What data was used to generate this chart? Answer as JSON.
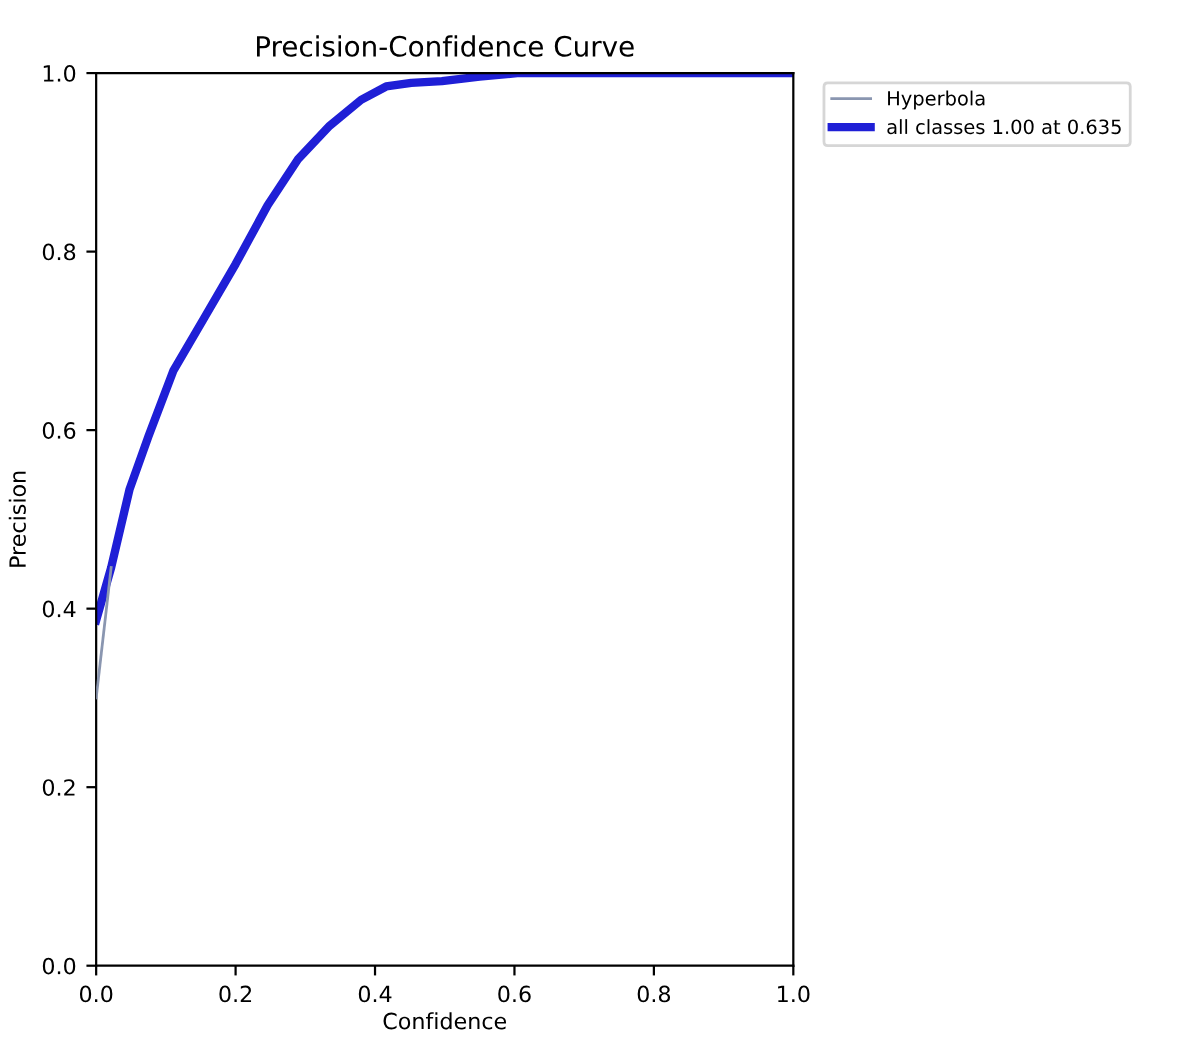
{
  "chart_data": {
    "type": "line",
    "title": "Precision-Confidence Curve",
    "xlabel": "Confidence",
    "ylabel": "Precision",
    "series": [
      {
        "name": "Hyperbola",
        "color": "#8a96b0",
        "x": [
          0,
          0.0215
        ],
        "values": [
          0.3,
          0.446
        ]
      },
      {
        "name": "all classes 1.00 at 0.635",
        "color": "#1f1fd6",
        "x": [
          0,
          0.0215,
          0.048,
          0.075,
          0.111,
          0.156,
          0.2,
          0.246,
          0.29,
          0.335,
          0.38,
          0.416,
          0.452,
          0.496,
          0.55,
          0.604,
          1.0
        ],
        "values": [
          0.387,
          0.446,
          0.534,
          0.593,
          0.667,
          0.727,
          0.786,
          0.852,
          0.904,
          0.941,
          0.97,
          0.985,
          0.989,
          0.991,
          0.996,
          1.0,
          1.0
        ]
      }
    ],
    "xlim": [
      0,
      1
    ],
    "ylim": [
      0,
      1
    ],
    "xticks": [
      {
        "value": 0,
        "label": "0.0"
      },
      0.2,
      0.4,
      0.6,
      0.8,
      {
        "value": 1,
        "label": "1.0"
      }
    ],
    "yticks": [
      {
        "value": 0,
        "label": "0.0"
      },
      0.2,
      0.4,
      0.6,
      0.8,
      {
        "value": 1,
        "label": "1.0"
      }
    ],
    "grid": false,
    "legend": "top right",
    "marker": "none",
    "line_style": "solid"
  }
}
